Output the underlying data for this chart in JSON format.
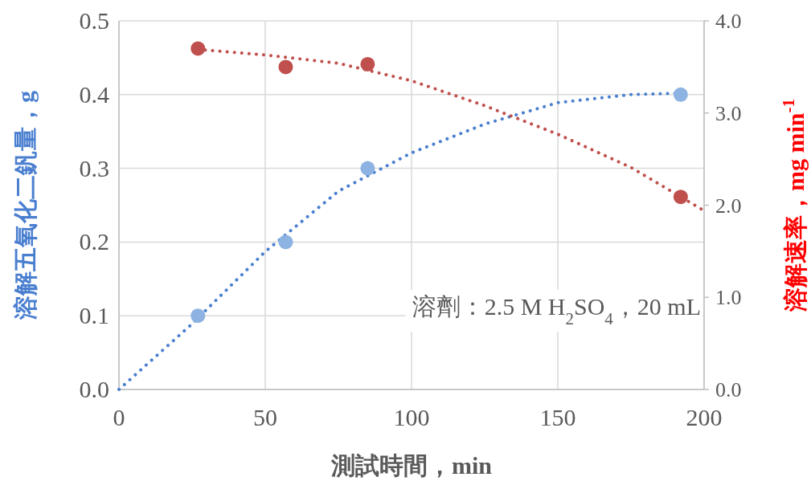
{
  "chart_data": {
    "type": "scatter",
    "xlabel": "測試時間，min",
    "ylabel": "溶解五氧化二釩量，g",
    "y2label": "溶解速率，mg min$^{-1}$",
    "annotations": [
      "溶劑：2.5 M H$_{2}$SO$_{4}$，20 mL"
    ],
    "xlim": [
      0,
      200
    ],
    "xticks": [
      0,
      50,
      100,
      150,
      200
    ],
    "ylim": [
      0,
      0.5
    ],
    "yticks": [
      {
        "value": 0,
        "label": "0.0"
      },
      0.1,
      0.2,
      0.3,
      0.4,
      0.5
    ],
    "y2lim": [
      0,
      4
    ],
    "y2ticks": [
      {
        "value": 0,
        "label": "0.0"
      },
      {
        "value": 1,
        "label": "1.0"
      },
      {
        "value": 2,
        "label": "2.0"
      },
      {
        "value": 3,
        "label": "3.0"
      },
      {
        "value": 4,
        "label": "4.0"
      }
    ],
    "grid": true,
    "series": [
      {
        "type": "line",
        "color": "#4a7fd0",
        "marker": "none",
        "line_style": "dotted",
        "x": [
          0,
          25,
          50,
          75,
          100,
          125,
          150,
          175,
          192
        ],
        "values": [
          0,
          0.089,
          0.187,
          0.269,
          0.321,
          0.36,
          0.389,
          0.4,
          0.402
        ]
      },
      {
        "type": "line",
        "axis": "y2",
        "color": "#c0504d",
        "marker": "none",
        "line_style": "dotted",
        "x": [
          27,
          50,
          75,
          100,
          125,
          150,
          175,
          200
        ],
        "values": [
          3.69,
          3.63,
          3.54,
          3.35,
          3.08,
          2.77,
          2.41,
          1.94
        ]
      },
      {
        "color": "#8db3e2",
        "marker": "circle",
        "x": [
          27,
          57,
          85,
          192
        ],
        "values": [
          0.1,
          0.2,
          0.3,
          0.4
        ]
      },
      {
        "axis": "y2",
        "color": "#c0504d",
        "marker": "circle",
        "x": [
          27,
          57,
          85,
          192
        ],
        "values": [
          3.7,
          3.5,
          3.53,
          2.09
        ]
      }
    ]
  }
}
